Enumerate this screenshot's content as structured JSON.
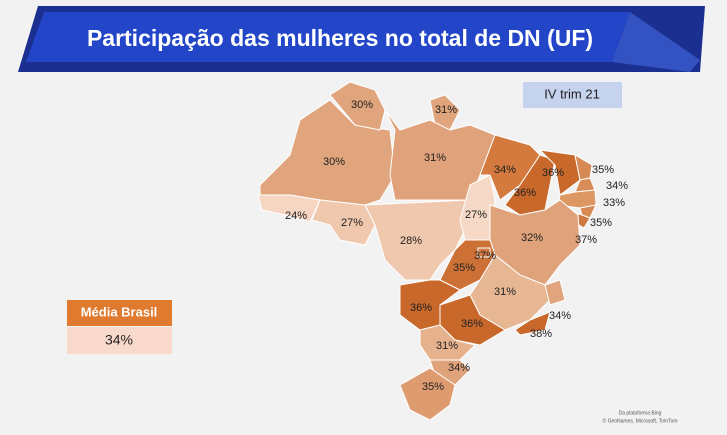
{
  "header": {
    "title": "Participação das mulheres no total de DN (UF)",
    "badge": "IV trim 21"
  },
  "map": {
    "labels": [
      "30%",
      "31%",
      "30%",
      "31%",
      "34%",
      "36%",
      "36%",
      "35%",
      "34%",
      "33%",
      "35%",
      "37%",
      "24%",
      "27%",
      "28%",
      "27%",
      "32%",
      "35%",
      "37%",
      "31%",
      "36%",
      "36%",
      "34%",
      "38%",
      "31%",
      "34%",
      "35%"
    ]
  },
  "legend": {
    "title": "Média Brasil",
    "value": "34%"
  },
  "attribution": [
    "Da plataforma Bing",
    "© GeoNames, Microsoft, TomTom"
  ]
}
